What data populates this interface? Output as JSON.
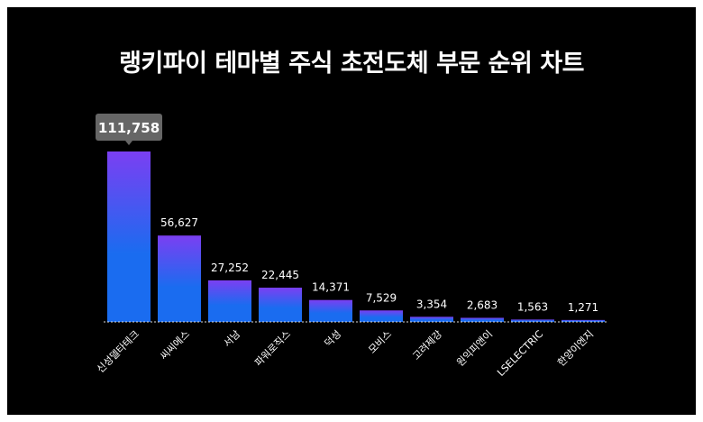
{
  "chart_data": {
    "type": "bar",
    "title": "랭키파이 테마별 주식 초전도체 부문 순위 차트",
    "categories": [
      "신성델타테크",
      "씨씨에스",
      "서남",
      "파워로직스",
      "덕성",
      "모비스",
      "고려제강",
      "원익피앤이",
      "LSELECTRIC",
      "한양이엔지"
    ],
    "values": [
      111758,
      56627,
      27252,
      22445,
      14371,
      7529,
      3354,
      2683,
      1563,
      1271
    ],
    "value_labels": [
      "111,758",
      "56,627",
      "27,252",
      "22,445",
      "14,371",
      "7,529",
      "3,354",
      "2,683",
      "1,563",
      "1,271"
    ],
    "highlighted_index": 0,
    "xlabel": "",
    "ylabel": "",
    "ylim": [
      0,
      111758
    ],
    "grid": false,
    "colors": {
      "top": "#7b3ff2",
      "bottom": "#1a6cf0",
      "background": "#000000",
      "tooltip": "#666666"
    }
  }
}
